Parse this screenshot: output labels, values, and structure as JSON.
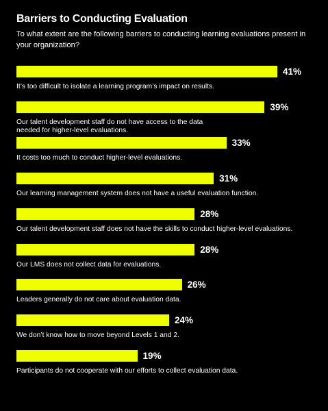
{
  "colors": {
    "background": "#000000",
    "bar": "#f0ff00",
    "text": "#ffffff"
  },
  "chart_data": {
    "type": "bar",
    "orientation": "horizontal",
    "title": "Barriers to Conducting Evaluation",
    "subtitle": "To what extent are the following barriers to conducting learning evaluations present in your organization?",
    "unit": "%",
    "xlim": [
      0,
      41
    ],
    "grid": false,
    "categories": [
      "It’s too difficult to isolate a learning program’s impact on results.",
      "Our talent development staff do not have access to the data needed for higher-level evaluations.",
      "It costs too much to conduct higher-level evaluations.",
      "Our learning management system does not have a useful evaluation function.",
      "Our talent development staff does not have the skills to conduct higher-level evaluations.",
      "Our LMS does not collect data for evaluations.",
      "Leaders generally do not care about evaluation data.",
      "We don’t know how to move beyond Levels 1 and 2.",
      "Participants do not cooperate with our efforts to collect evaluation data."
    ],
    "values": [
      41,
      39,
      33,
      31,
      28,
      28,
      26,
      24,
      19
    ],
    "value_labels": [
      "41%",
      "39%",
      "33%",
      "31%",
      "28%",
      "28%",
      "26%",
      "24%",
      "19%"
    ]
  }
}
